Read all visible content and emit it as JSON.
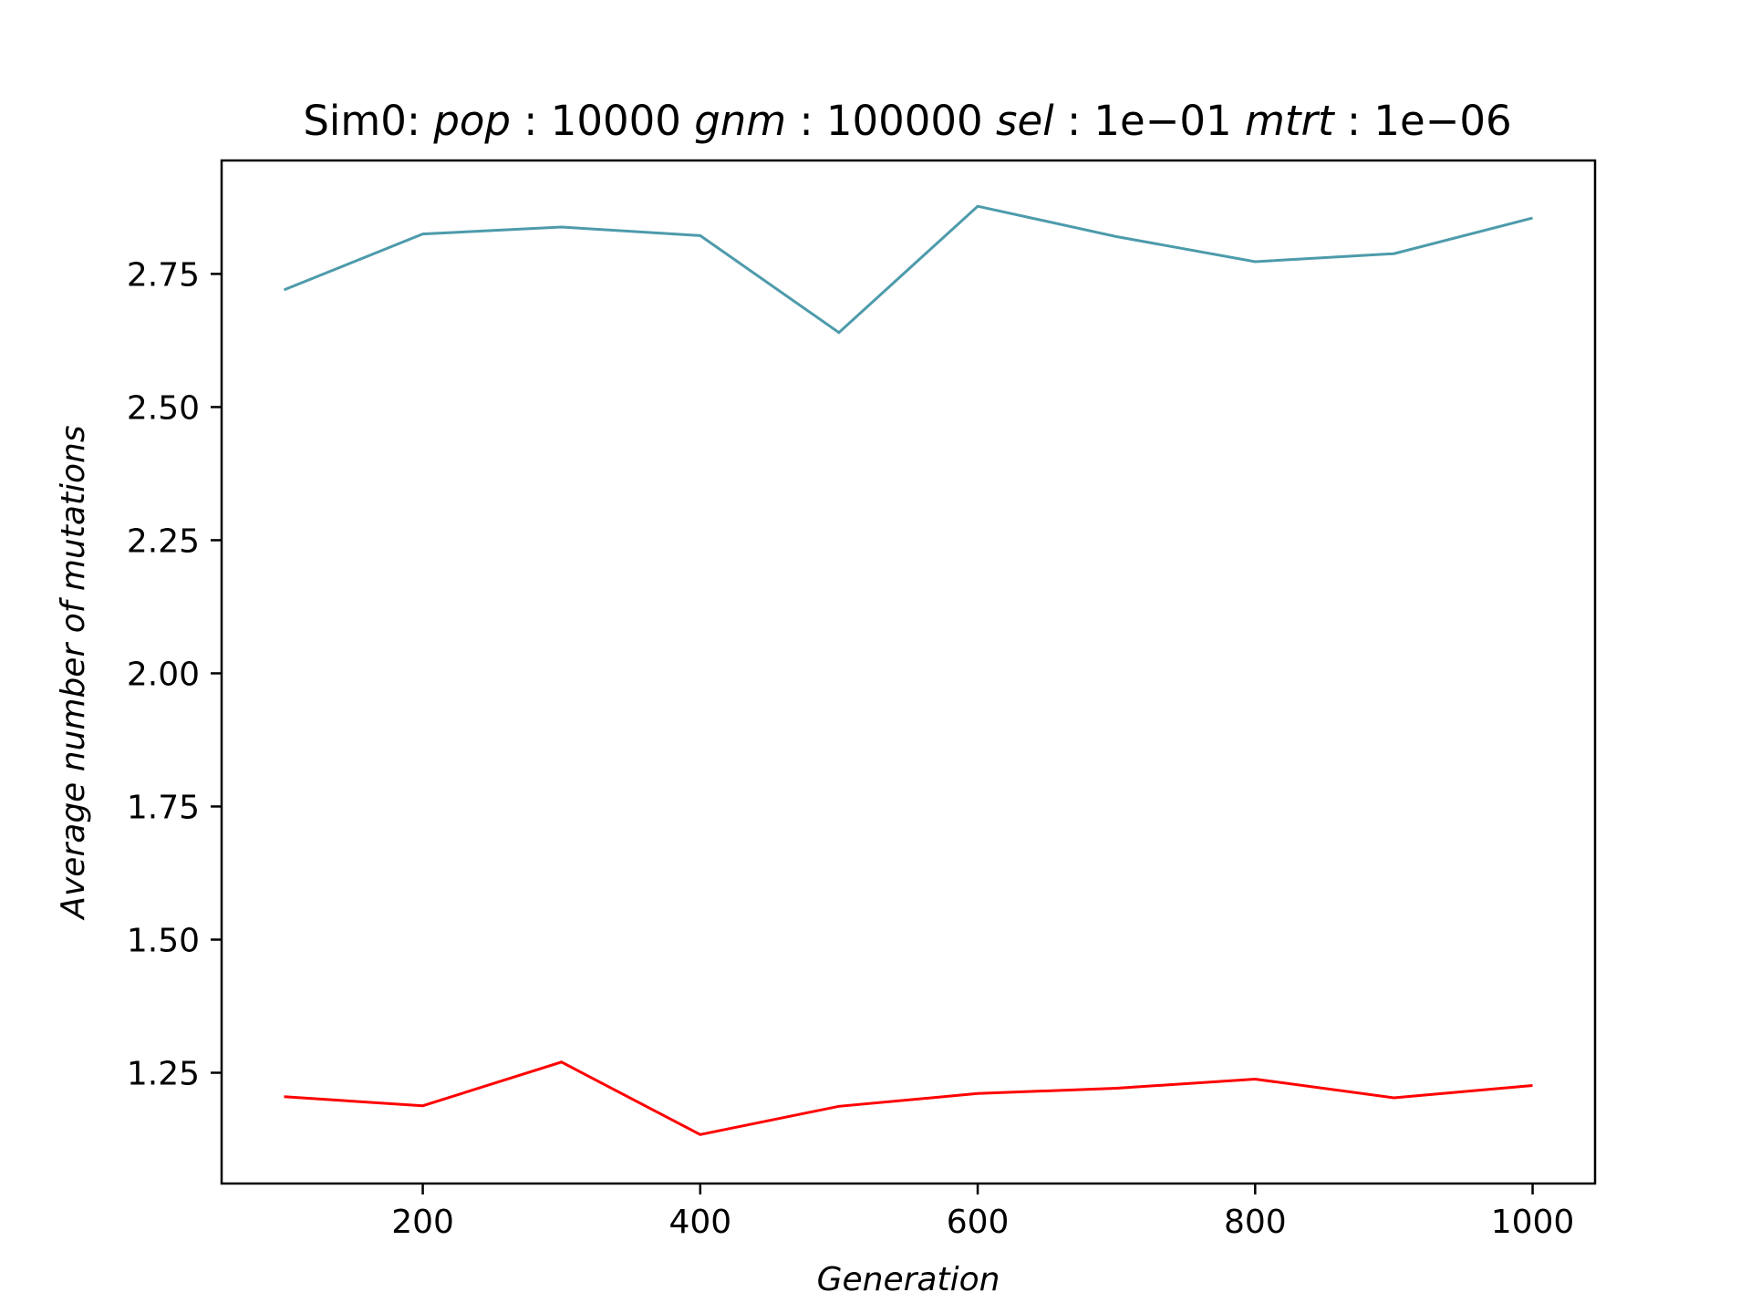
{
  "chart_data": {
    "type": "line",
    "title": {
      "prefix": "Sim0:",
      "parts": [
        {
          "name": "pop",
          "value": "10000"
        },
        {
          "name": "gnm",
          "value": "100000"
        },
        {
          "name": "sel",
          "value": "1e−01"
        },
        {
          "name": "mtrt",
          "value": "1e−06"
        }
      ]
    },
    "xlabel": "Generation",
    "ylabel": "Average number of mutations",
    "x": [
      100,
      200,
      300,
      400,
      500,
      600,
      700,
      800,
      900,
      1000
    ],
    "xlim": [
      55,
      1045
    ],
    "ylim": [
      1.042,
      2.963
    ],
    "x_ticks": [
      200,
      400,
      600,
      800,
      1000
    ],
    "x_tick_labels": [
      "200",
      "400",
      "600",
      "800",
      "1000"
    ],
    "y_ticks": [
      1.25,
      1.5,
      1.75,
      2.0,
      2.25,
      2.5,
      2.75
    ],
    "y_tick_labels": [
      "1.25",
      "1.50",
      "1.75",
      "2.00",
      "2.25",
      "2.50",
      "2.75"
    ],
    "grid": false,
    "series": [
      {
        "color": "#4d9bab",
        "values": [
          2.72,
          2.825,
          2.838,
          2.822,
          2.64,
          2.877,
          2.82,
          2.773,
          2.788,
          2.855
        ]
      },
      {
        "color": "#ff0000",
        "values": [
          1.205,
          1.188,
          1.27,
          1.134,
          1.187,
          1.211,
          1.221,
          1.238,
          1.203,
          1.226
        ]
      }
    ]
  }
}
